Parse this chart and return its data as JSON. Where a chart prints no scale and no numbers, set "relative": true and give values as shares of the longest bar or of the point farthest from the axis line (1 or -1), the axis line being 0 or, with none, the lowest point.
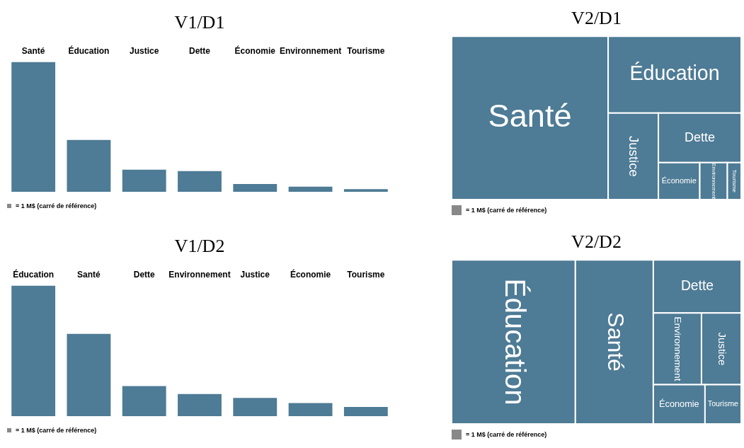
{
  "chart_data": [
    {
      "type": "bar",
      "relative": true,
      "title": "V1/D1",
      "categories": [
        "Santé",
        "Éducation",
        "Justice",
        "Dette",
        "Économie",
        "Environnement",
        "Tourisme"
      ],
      "values": [
        1,
        0.4,
        0.17,
        0.16,
        0.06,
        0.04,
        0.02
      ],
      "color": "#4e7b95",
      "annotations": [
        "= 1 M$ (carré de référence)"
      ]
    },
    {
      "type": "other",
      "title": "V2/D1",
      "categories": [
        "Santé",
        "Éducation",
        "Justice",
        "Dette",
        "Économie",
        "Environnement",
        "Tourisme"
      ],
      "color": "#4e7b95",
      "annotations": [
        "= 1 M$ (carré de référence)"
      ]
    },
    {
      "type": "bar",
      "relative": true,
      "title": "V1/D2",
      "categories": [
        "Éducation",
        "Santé",
        "Dette",
        "Environnement",
        "Justice",
        "Économie",
        "Tourisme"
      ],
      "values": [
        1,
        0.63,
        0.23,
        0.17,
        0.14,
        0.1,
        0.07
      ],
      "color": "#4e7b95",
      "annotations": [
        "= 1 M$ (carré de référence)"
      ]
    },
    {
      "type": "other",
      "title": "V2/D2",
      "categories": [
        "Éducation",
        "Santé",
        "Dette",
        "Environnement",
        "Justice",
        "Économie",
        "Tourisme"
      ],
      "color": "#4e7b95",
      "annotations": [
        "= 1 M$ (carré de référence)"
      ]
    }
  ]
}
